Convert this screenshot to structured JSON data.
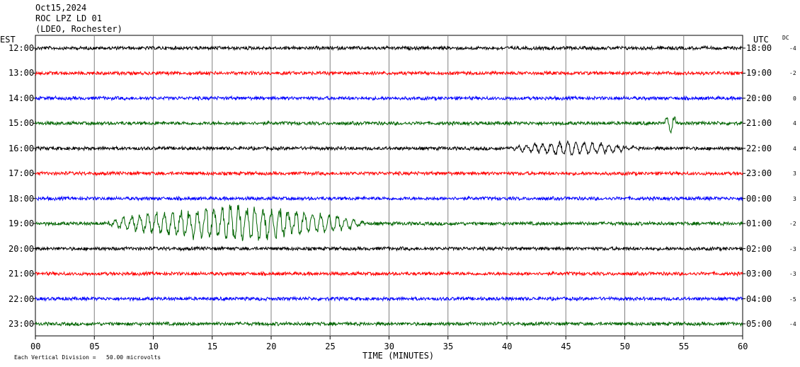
{
  "header": {
    "date": "Oct15,2024",
    "station": "ROC LPZ LD 01",
    "network": "(LDEO, Rochester)"
  },
  "left_axis_label": "EST",
  "right_axis_label": "UTC",
  "dc_label": "DC",
  "footer": {
    "scale_text": "Each Vertical Division =   50.00 microvolts"
  },
  "colors": {
    "black": "#000000",
    "red": "#ff0000",
    "blue": "#0000ff",
    "green": "#006400",
    "grid": "#808080"
  },
  "chart_data": {
    "type": "line",
    "title": "ROC LPZ LD 01",
    "xlabel": "TIME (MINUTES)",
    "xlim": [
      0,
      60
    ],
    "x_ticks": [
      "00",
      "05",
      "10",
      "15",
      "20",
      "25",
      "30",
      "35",
      "40",
      "45",
      "50",
      "55",
      "60"
    ],
    "grid": true,
    "traces": [
      {
        "est": "12:00",
        "utc": "18:00",
        "dc": "-4",
        "color": "black"
      },
      {
        "est": "13:00",
        "utc": "19:00",
        "dc": "-2",
        "color": "red"
      },
      {
        "est": "14:00",
        "utc": "20:00",
        "dc": "0",
        "color": "blue"
      },
      {
        "est": "15:00",
        "utc": "21:00",
        "dc": "4",
        "color": "green"
      },
      {
        "est": "16:00",
        "utc": "22:00",
        "dc": "4",
        "color": "black"
      },
      {
        "est": "17:00",
        "utc": "23:00",
        "dc": "3",
        "color": "red"
      },
      {
        "est": "18:00",
        "utc": "00:00",
        "dc": "3",
        "color": "blue"
      },
      {
        "est": "19:00",
        "utc": "01:00",
        "dc": "-2",
        "color": "green"
      },
      {
        "est": "20:00",
        "utc": "02:00",
        "dc": "-3",
        "color": "black"
      },
      {
        "est": "21:00",
        "utc": "03:00",
        "dc": "-3",
        "color": "red"
      },
      {
        "est": "22:00",
        "utc": "04:00",
        "dc": "-5",
        "color": "blue"
      },
      {
        "est": "23:00",
        "utc": "05:00",
        "dc": "-4",
        "color": "green"
      }
    ],
    "events": [
      {
        "trace": 3,
        "start_min": 53.3,
        "end_min": 54.5,
        "peak_amplitude_div": 0.5
      },
      {
        "trace": 4,
        "start_min": 40,
        "end_min": 51,
        "peak_amplitude_div": 0.3
      },
      {
        "trace": 7,
        "start_min": 6,
        "end_min": 28,
        "peak_amplitude_div": 0.8
      }
    ]
  }
}
